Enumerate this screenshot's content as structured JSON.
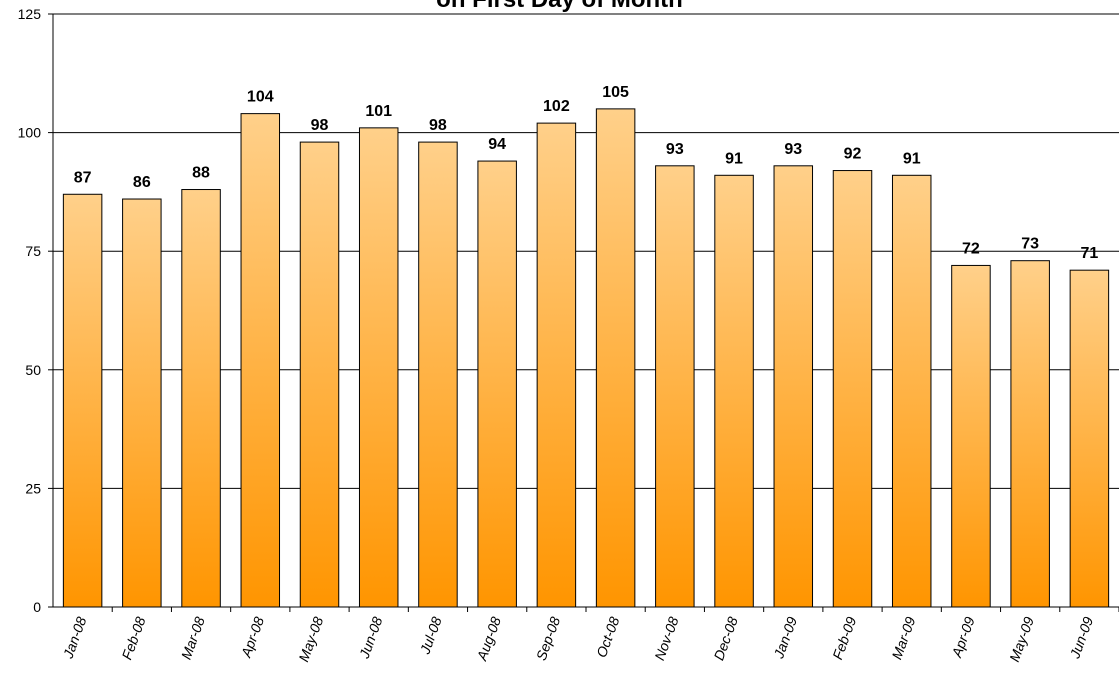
{
  "chart_data": {
    "type": "bar",
    "title": "on First Day of Month",
    "xlabel": "",
    "ylabel": "",
    "ylim": [
      0,
      125
    ],
    "yticks": [
      0,
      25,
      50,
      75,
      100,
      125
    ],
    "grid": true,
    "legend": "none",
    "categories": [
      "Jan-08",
      "Feb-08",
      "Mar-08",
      "Apr-08",
      "May-08",
      "Jun-08",
      "Jul-08",
      "Aug-08",
      "Sep-08",
      "Oct-08",
      "Nov-08",
      "Dec-08",
      "Jan-09",
      "Feb-09",
      "Mar-09",
      "Apr-09",
      "May-09",
      "Jun-09"
    ],
    "values": [
      87,
      86,
      88,
      104,
      98,
      101,
      98,
      94,
      102,
      105,
      93,
      91,
      93,
      92,
      91,
      72,
      73,
      71
    ],
    "colors": {
      "bar_top": "#ffd08a",
      "bar_bottom": "#ff9500",
      "bar_stroke": "#000000",
      "grid": "#000000"
    }
  }
}
